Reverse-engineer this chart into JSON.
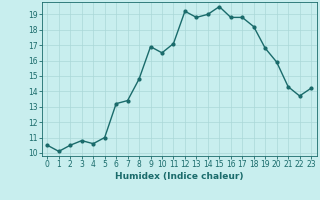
{
  "x": [
    0,
    1,
    2,
    3,
    4,
    5,
    6,
    7,
    8,
    9,
    10,
    11,
    12,
    13,
    14,
    15,
    16,
    17,
    18,
    19,
    20,
    21,
    22,
    23
  ],
  "y": [
    10.5,
    10.1,
    10.5,
    10.8,
    10.6,
    11.0,
    13.2,
    13.4,
    14.8,
    16.9,
    16.5,
    17.1,
    19.2,
    18.8,
    19.0,
    19.5,
    18.8,
    18.8,
    18.2,
    16.8,
    15.9,
    14.3,
    13.7,
    14.2
  ],
  "line_color": "#1a6b6b",
  "marker_color": "#1a6b6b",
  "bg_color": "#c8eeee",
  "grid_color": "#aad8d8",
  "xlabel": "Humidex (Indice chaleur)",
  "xlim": [
    -0.5,
    23.5
  ],
  "ylim": [
    9.8,
    19.8
  ],
  "yticks": [
    10,
    11,
    12,
    13,
    14,
    15,
    16,
    17,
    18,
    19
  ],
  "xticks": [
    0,
    1,
    2,
    3,
    4,
    5,
    6,
    7,
    8,
    9,
    10,
    11,
    12,
    13,
    14,
    15,
    16,
    17,
    18,
    19,
    20,
    21,
    22,
    23
  ],
  "tick_fontsize": 5.5,
  "label_fontsize": 6.5,
  "marker_size": 2,
  "line_width": 1.0
}
